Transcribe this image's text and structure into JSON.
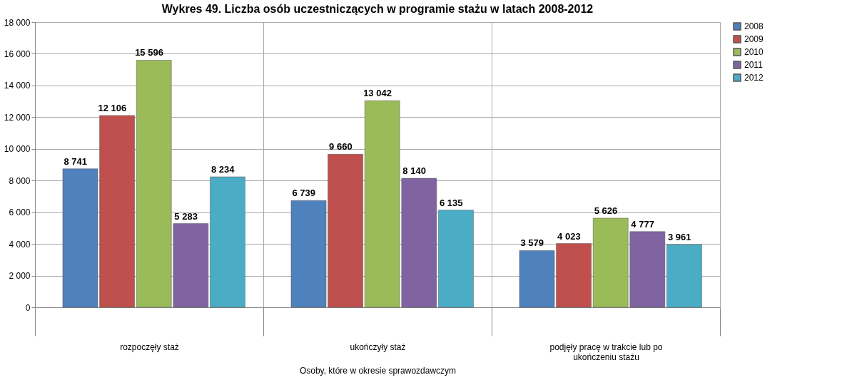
{
  "chart_data": {
    "type": "bar",
    "title": "Wykres 49. Liczba osób uczestniczących w programie stażu w latach 2008-2012",
    "xlabel": "Osoby, które w okresie sprawozdawczym",
    "categories": [
      "rozpoczęły staż",
      "ukończyły staż",
      "podjęły pracę w trakcie lub po ukończeniu stażu"
    ],
    "series": [
      {
        "name": "2008",
        "color": "#4f81bd",
        "values": [
          8741,
          6739,
          3579
        ],
        "value_labels": [
          "8 741",
          "6 739",
          "3 579"
        ]
      },
      {
        "name": "2009",
        "color": "#c0504d",
        "values": [
          12106,
          9660,
          4023
        ],
        "value_labels": [
          "12 106",
          "9 660",
          "4 023"
        ]
      },
      {
        "name": "2010",
        "color": "#9bbb59",
        "values": [
          15596,
          13042,
          5626
        ],
        "value_labels": [
          "15 596",
          "13 042",
          "5 626"
        ]
      },
      {
        "name": "2011",
        "color": "#8064a2",
        "values": [
          5283,
          8140,
          4777
        ],
        "value_labels": [
          "5 283",
          "8 140",
          "4 777"
        ]
      },
      {
        "name": "2012",
        "color": "#4bacc6",
        "values": [
          8234,
          6135,
          3961
        ],
        "value_labels": [
          "8 234",
          "6 135",
          "3 961"
        ]
      }
    ],
    "ylim": [
      0,
      18000
    ],
    "yticks": [
      0,
      {
        "value": 2000,
        "label": "2 000"
      },
      {
        "value": 4000,
        "label": "4 000"
      },
      {
        "value": 6000,
        "label": "6 000"
      },
      {
        "value": 8000,
        "label": "8 000"
      },
      {
        "value": 10000,
        "label": "10 000"
      },
      {
        "value": 12000,
        "label": "12 000"
      },
      {
        "value": 14000,
        "label": "14 000"
      },
      {
        "value": 16000,
        "label": "16 000"
      },
      {
        "value": 18000,
        "label": "18 000"
      }
    ],
    "grid": true,
    "legend": "right"
  }
}
